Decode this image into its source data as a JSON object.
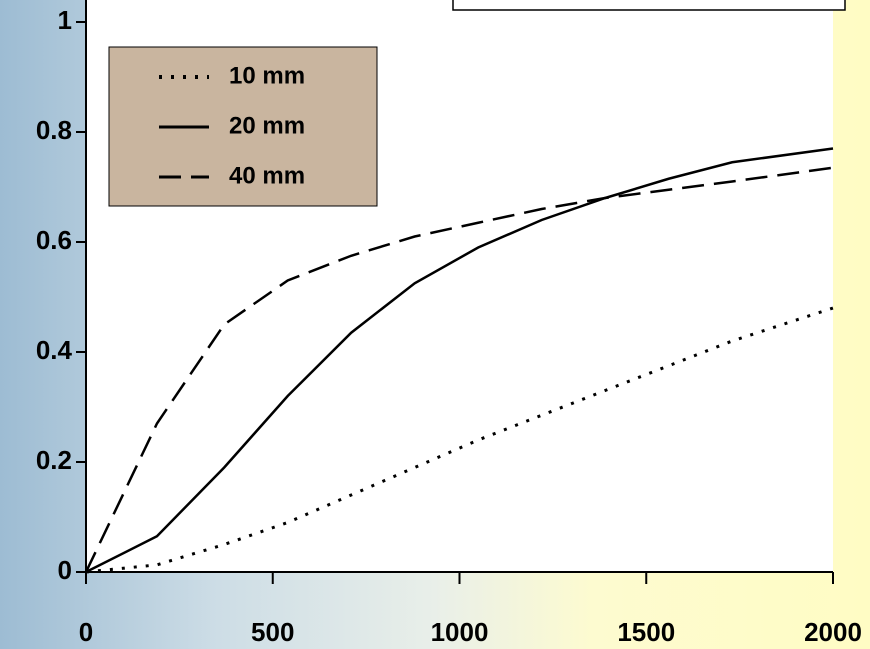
{
  "chart_data": {
    "type": "line",
    "x": [
      0,
      190,
      370,
      540,
      710,
      880,
      1050,
      1220,
      1390,
      1560,
      1730,
      2000
    ],
    "series": [
      {
        "name": "10 mm",
        "color": "#000000",
        "dash": "dotted",
        "values": [
          0,
          0.013,
          0.05,
          0.09,
          0.14,
          0.19,
          0.24,
          0.285,
          0.33,
          0.375,
          0.42,
          0.48
        ]
      },
      {
        "name": "20 mm",
        "color": "#000000",
        "dash": "solid",
        "values": [
          0,
          0.065,
          0.19,
          0.32,
          0.435,
          0.525,
          0.59,
          0.64,
          0.68,
          0.715,
          0.745,
          0.77
        ]
      },
      {
        "name": "40 mm",
        "color": "#000000",
        "dash": "dashed",
        "values": [
          0,
          0.27,
          0.45,
          0.53,
          0.575,
          0.61,
          0.635,
          0.66,
          0.68,
          0.695,
          0.71,
          0.735
        ]
      }
    ],
    "xlim": [
      0,
      2000
    ],
    "xticks": [
      0,
      500,
      1000,
      1500,
      2000
    ],
    "ylim": [
      0,
      1
    ],
    "yticks": [
      0,
      0.2,
      0.4,
      0.6,
      0.8,
      1
    ],
    "legend": "upper left"
  }
}
